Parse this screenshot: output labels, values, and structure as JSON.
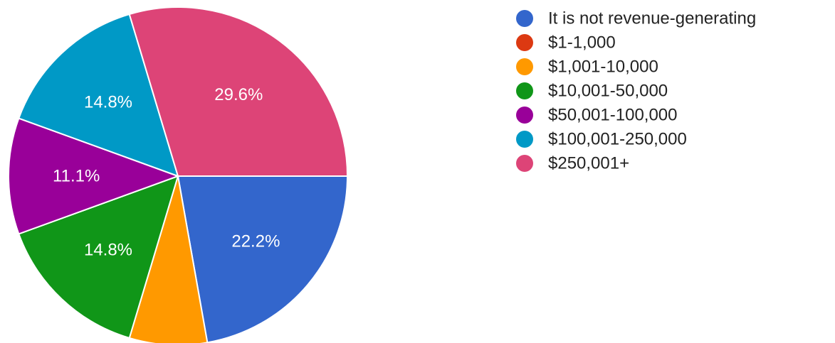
{
  "chart_data": {
    "type": "pie",
    "title": "",
    "legend_position": "right",
    "slices": [
      {
        "label": "It is not revenue-generating",
        "value": 22.2,
        "display": "22.2%",
        "color": "#3366cc"
      },
      {
        "label": "$1-1,000",
        "value": 0,
        "display": "",
        "color": "#dc3912"
      },
      {
        "label": "$1,001-10,000",
        "value": 7.4,
        "display": "",
        "color": "#ff9900"
      },
      {
        "label": "$10,001-50,000",
        "value": 14.8,
        "display": "14.8%",
        "color": "#109618"
      },
      {
        "label": "$50,001-100,000",
        "value": 11.1,
        "display": "11.1%",
        "color": "#990099"
      },
      {
        "label": "$100,001-250,000",
        "value": 14.8,
        "display": "14.8%",
        "color": "#0099c6"
      },
      {
        "label": "$250,001+",
        "value": 29.6,
        "display": "29.6%",
        "color": "#dd4477"
      }
    ]
  }
}
